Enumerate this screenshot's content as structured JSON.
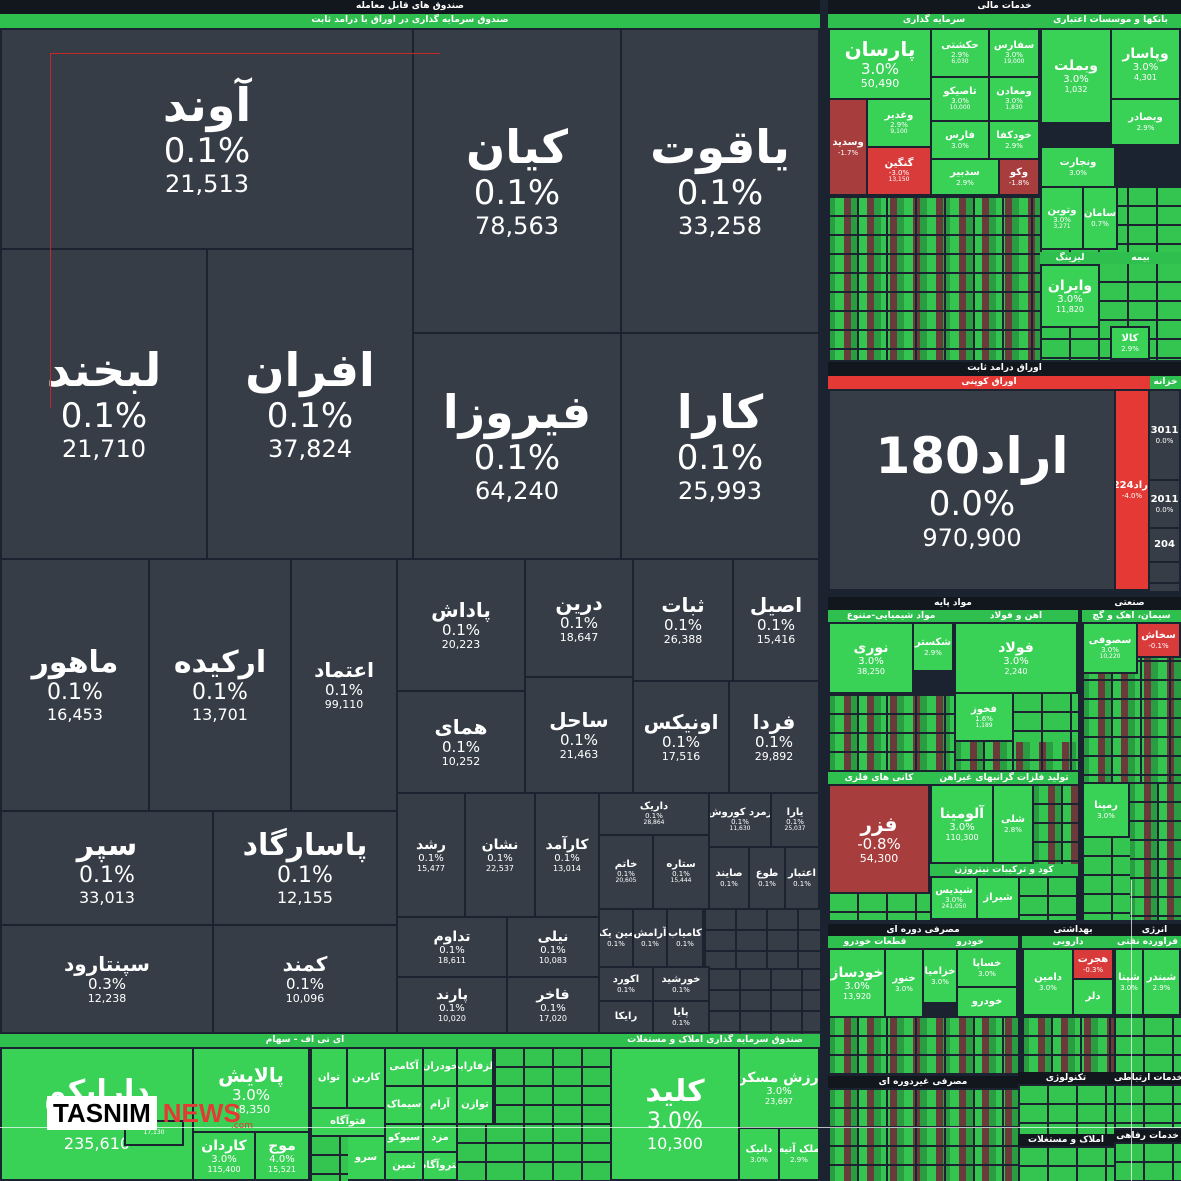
{
  "headers": {
    "etf": "صندوق های قابل معامله",
    "fixed_income_fund": "صندوق سرمایه گذاری در اوراق با درامد ثابت",
    "financial_services": "خدمات مالی",
    "investments": "سرمایه گذاری",
    "banks": "بانکها و موسسات اعتباری",
    "insurance": "بیمه",
    "leasing": "لیزینگ",
    "fixed_income_bonds": "اوراق درامد ثابت",
    "coupon_bonds": "اوراق کوپنی",
    "treasury": "خزانه",
    "basic_materials": "مواد پایه",
    "chemicals": "مواد شیمیایی-متنوع",
    "iron_steel": "اهن و فولاد",
    "industrial": "صنعتی",
    "cement": "سیمان، اهک و گچ",
    "metal_ores": "کانی های فلزی",
    "nonmetal": "تولید فلزات گرانبهای غیراهن",
    "fertilizer": "کود و ترکیبات نیتروژن",
    "consumer_cyclical": "مصرفی دوره ای",
    "auto": "قطعات خودرو",
    "auto2": "خودرو",
    "health": "بهداشتی",
    "pharma": "دارویی",
    "energy": "انرژی",
    "refinery": "فراورده نفتی",
    "consumer_noncyclical": "مصرفی غیردوره ای",
    "technology": "تکنولوژی",
    "telecom": "خدمات ارتباطی",
    "realestate": "املاک و مستغلات",
    "welfare": "خدمات رفاهی",
    "etf_stock": "ای تی اف - سهام",
    "property_fund": "صندوق سرمایه گذاری املاک و مستغلات"
  },
  "big_tiles": [
    {
      "name": "آوند",
      "pct": "0.1%",
      "val": "21,513"
    },
    {
      "name": "کیان",
      "pct": "0.1%",
      "val": "78,563"
    },
    {
      "name": "یاقوت",
      "pct": "0.1%",
      "val": "33,258"
    },
    {
      "name": "لبخند",
      "pct": "0.1%",
      "val": "21,710"
    },
    {
      "name": "افران",
      "pct": "0.1%",
      "val": "37,824"
    },
    {
      "name": "فیروزا",
      "pct": "0.1%",
      "val": "64,240"
    },
    {
      "name": "کارا",
      "pct": "0.1%",
      "val": "25,993"
    },
    {
      "name": "ماهور",
      "pct": "0.1%",
      "val": "16,453"
    },
    {
      "name": "ارکیده",
      "pct": "0.1%",
      "val": "13,701"
    },
    {
      "name": "اعتماد",
      "pct": "0.1%",
      "val": "99,110"
    },
    {
      "name": "پاداش",
      "pct": "0.1%",
      "val": "20,223"
    },
    {
      "name": "درین",
      "pct": "0.1%",
      "val": "18,647"
    },
    {
      "name": "ثبات",
      "pct": "0.1%",
      "val": "26,388"
    },
    {
      "name": "اصیل",
      "pct": "0.1%",
      "val": "15,416"
    },
    {
      "name": "همای",
      "pct": "0.1%",
      "val": "10,252"
    },
    {
      "name": "ساحل",
      "pct": "0.1%",
      "val": "21,463"
    },
    {
      "name": "اونیکس",
      "pct": "0.1%",
      "val": "17,516"
    },
    {
      "name": "فردا",
      "pct": "0.1%",
      "val": "29,892"
    },
    {
      "name": "سپر",
      "pct": "0.1%",
      "val": "33,013"
    },
    {
      "name": "پاسارگاد",
      "pct": "0.1%",
      "val": "12,155"
    },
    {
      "name": "رشد",
      "pct": "0.1%",
      "val": "15,477"
    },
    {
      "name": "نشان",
      "pct": "0.1%",
      "val": "22,537"
    },
    {
      "name": "کارآمد",
      "pct": "0.1%",
      "val": "13,014"
    },
    {
      "name": "داریک",
      "pct": "0.1%",
      "val": "28,864"
    },
    {
      "name": "زمرد کوروش",
      "pct": "0.1%",
      "val": "11,630"
    },
    {
      "name": "یارا",
      "pct": "0.1%",
      "val": "25,037"
    },
    {
      "name": "خاتم",
      "pct": "0.1%",
      "val": "20,605"
    },
    {
      "name": "ستاره",
      "pct": "0.1%",
      "val": "15,444"
    },
    {
      "name": "صایند",
      "pct": "0.1%",
      "val": ""
    },
    {
      "name": "طوع",
      "pct": "0.1%",
      "val": ""
    },
    {
      "name": "اعتبار",
      "pct": "0.1%",
      "val": ""
    },
    {
      "name": "سپنتارود",
      "pct": "0.3%",
      "val": "12,238"
    },
    {
      "name": "کمند",
      "pct": "0.1%",
      "val": "10,096"
    },
    {
      "name": "تداوم",
      "pct": "0.1%",
      "val": "18,611"
    },
    {
      "name": "نیلی",
      "pct": "0.1%",
      "val": "10,083"
    },
    {
      "name": "پارند",
      "pct": "0.1%",
      "val": "10,020"
    },
    {
      "name": "فاخر",
      "pct": "0.1%",
      "val": "17,020"
    },
    {
      "name": "امین یکم",
      "pct": "0.1%",
      "val": ""
    },
    {
      "name": "آرامش",
      "pct": "0.1%",
      "val": ""
    },
    {
      "name": "کامیاب",
      "pct": "0.1%",
      "val": ""
    },
    {
      "name": "اکورد",
      "pct": "0.1%",
      "val": ""
    },
    {
      "name": "خورشید",
      "pct": "0.1%",
      "val": ""
    },
    {
      "name": "رایکا",
      "pct": "",
      "val": ""
    },
    {
      "name": "پایا",
      "pct": "0.1%",
      "val": ""
    }
  ],
  "fin_tiles": [
    {
      "name": "پارسان",
      "pct": "3.0%",
      "val": "50,490"
    },
    {
      "name": "حکشتی",
      "pct": "2.9%",
      "val": "6,030"
    },
    {
      "name": "سفارس",
      "pct": "3.0%",
      "val": "19,000"
    },
    {
      "name": "وبملت",
      "pct": "3.0%",
      "val": "1,032"
    },
    {
      "name": "وپاسار",
      "pct": "3.0%",
      "val": "4,301"
    },
    {
      "name": "تاصیکو",
      "pct": "3.0%",
      "val": "10,000"
    },
    {
      "name": "ومعادن",
      "pct": "3.0%",
      "val": "1,830"
    },
    {
      "name": "وغدیر",
      "pct": "2.9%",
      "val": "9,100"
    },
    {
      "name": "وبصادر",
      "pct": "2.9%",
      "val": ""
    },
    {
      "name": "وسدید",
      "pct": "-1.7%",
      "val": ""
    },
    {
      "name": "فارس",
      "pct": "3.0%",
      "val": ""
    },
    {
      "name": "خودکفا",
      "pct": "2.9%",
      "val": ""
    },
    {
      "name": "ونجارت",
      "pct": "3.0%",
      "val": ""
    },
    {
      "name": "گنگین",
      "pct": "-3.0%",
      "val": "13,150"
    },
    {
      "name": "سدبیر",
      "pct": "2.9%",
      "val": ""
    },
    {
      "name": "وکو",
      "pct": "-1.8%",
      "val": ""
    },
    {
      "name": "وتوین",
      "pct": "3.0%",
      "val": "3,271"
    },
    {
      "name": "سامان",
      "pct": "0.7%",
      "val": ""
    },
    {
      "name": "وایران",
      "pct": "3.0%",
      "val": "11,820"
    },
    {
      "name": "کالا",
      "pct": "2.9%",
      "val": ""
    }
  ],
  "bond_tiles": [
    {
      "name": "اراد180",
      "pct": "0.0%",
      "val": "970,900"
    },
    {
      "name": "اراد224",
      "pct": "-4.0%",
      "val": ""
    },
    {
      "name": "3011",
      "pct": "0.0%",
      "val": ""
    },
    {
      "name": "2011",
      "pct": "0.0%",
      "val": ""
    },
    {
      "name": "204",
      "pct": "",
      "val": ""
    }
  ],
  "base_tiles": [
    {
      "name": "نوری",
      "pct": "3.0%",
      "val": "38,250"
    },
    {
      "name": "شکستر",
      "pct": "2.9%",
      "val": ""
    },
    {
      "name": "فولاد",
      "pct": "3.0%",
      "val": "2,240"
    },
    {
      "name": "فخوز",
      "pct": "1.6%",
      "val": "1,189"
    },
    {
      "name": "سصوفی",
      "pct": "3.0%",
      "val": "10,220"
    },
    {
      "name": "سخاش",
      "pct": "-0.1%",
      "val": ""
    },
    {
      "name": "فزر",
      "pct": "-0.8%",
      "val": "54,300"
    },
    {
      "name": "آلومینا",
      "pct": "3.0%",
      "val": "110,300"
    },
    {
      "name": "شلی",
      "pct": "2.8%",
      "val": ""
    },
    {
      "name": "شیدیس",
      "pct": "3.0%",
      "val": "241,050"
    },
    {
      "name": "شیراز",
      "pct": "",
      "val": ""
    },
    {
      "name": "رمپنا",
      "pct": "3.0%",
      "val": ""
    },
    {
      "name": "خودساز",
      "pct": "3.0%",
      "val": "13,920"
    },
    {
      "name": "خنور",
      "pct": "3.0%",
      "val": ""
    },
    {
      "name": "خزامیا",
      "pct": "3.0%",
      "val": ""
    },
    {
      "name": "خساپا",
      "pct": "3.0%",
      "val": ""
    },
    {
      "name": "خودرو",
      "pct": "",
      "val": ""
    },
    {
      "name": "دامین",
      "pct": "3.0%",
      "val": ""
    },
    {
      "name": "هجرت",
      "pct": "-0.3%",
      "val": ""
    },
    {
      "name": "دلر",
      "pct": "",
      "val": ""
    },
    {
      "name": "شپنا",
      "pct": "3.0%",
      "val": ""
    },
    {
      "name": "شبندر",
      "pct": "2.9%",
      "val": ""
    }
  ],
  "etf_tiles": [
    {
      "name": "دارایکم",
      "pct": "3.0%",
      "val": "235,610"
    },
    {
      "name": "پالایش",
      "pct": "3.0%",
      "val": "18,350"
    },
    {
      "name": "توان",
      "pct": "",
      "val": ""
    },
    {
      "name": "کارین",
      "pct": "",
      "val": ""
    },
    {
      "name": "آکامی",
      "pct": "",
      "val": ""
    },
    {
      "name": "خودران",
      "pct": "",
      "val": ""
    },
    {
      "name": "فلزفارابی",
      "pct": "",
      "val": ""
    },
    {
      "name": "",
      "pct": "",
      "val": "17,130"
    },
    {
      "name": "کاردان",
      "pct": "3.0%",
      "val": "115,400"
    },
    {
      "name": "موج",
      "pct": "4.0%",
      "val": "15,521"
    },
    {
      "name": "سیماک",
      "pct": "",
      "val": ""
    },
    {
      "name": "آرام",
      "pct": "",
      "val": ""
    },
    {
      "name": "توازن",
      "pct": "",
      "val": ""
    },
    {
      "name": "فتوآگاه",
      "pct": "",
      "val": ""
    },
    {
      "name": "سیوکو",
      "pct": "",
      "val": ""
    },
    {
      "name": "مزد",
      "pct": "",
      "val": ""
    },
    {
      "name": "سرو",
      "pct": "",
      "val": ""
    },
    {
      "name": "ثمین",
      "pct": "",
      "val": ""
    },
    {
      "name": "پتروآگاه",
      "pct": "",
      "val": ""
    },
    {
      "name": "کلید",
      "pct": "3.0%",
      "val": "10,300"
    },
    {
      "name": "ارزش مسکن",
      "pct": "3.0%",
      "val": "23,697"
    },
    {
      "name": "دانیک",
      "pct": "3.0%",
      "val": ""
    },
    {
      "name": "ملک آتیه",
      "pct": "2.9%",
      "val": ""
    }
  ],
  "logo": {
    "brand": "TASNIM",
    "news": "NEWS",
    "tld": ".com"
  }
}
